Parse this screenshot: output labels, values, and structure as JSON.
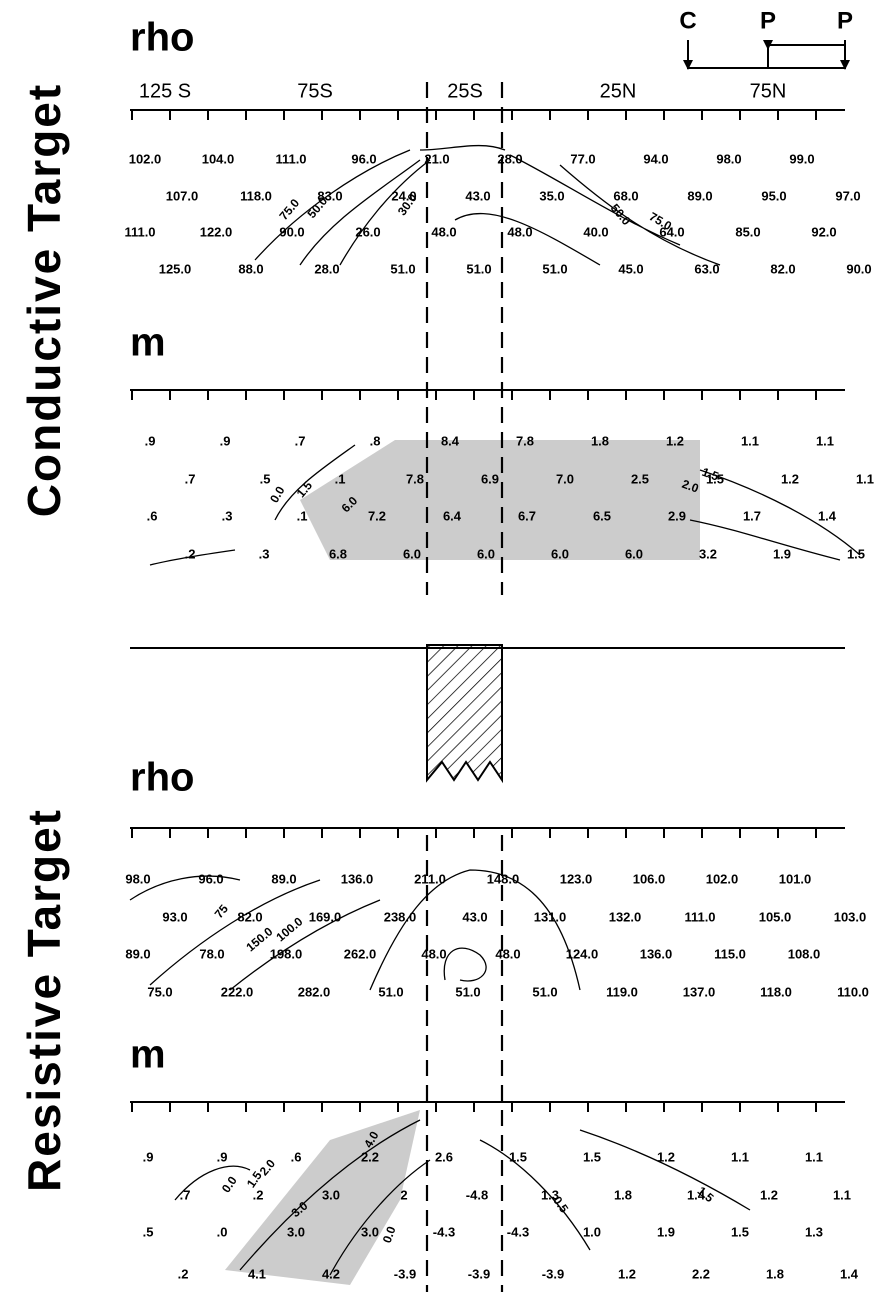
{
  "side_labels": [
    "Conductive Target",
    "Resistive Target"
  ],
  "array": [
    "C",
    "P",
    "P"
  ],
  "axis_labels": [
    "125 S",
    "75S",
    "25S",
    "25N",
    "75N"
  ],
  "panels": [
    {
      "title": "rho",
      "rows": [
        [
          "102.0",
          "104.0",
          "111.0",
          "96.0",
          "21.0",
          "28.0",
          "77.0",
          "94.0",
          "98.0",
          "99.0"
        ],
        [
          "107.0",
          "118.0",
          "83.0",
          "24.0",
          "43.0",
          "35.0",
          "68.0",
          "89.0",
          "95.0",
          "97.0"
        ],
        [
          "111.0",
          "122.0",
          "90.0",
          "26.0",
          "48.0",
          "48.0",
          "40.0",
          "64.0",
          "85.0",
          "92.0"
        ],
        [
          "125.0",
          "88.0",
          "28.0",
          "51.0",
          "51.0",
          "51.0",
          "45.0",
          "63.0",
          "82.0",
          "90.0"
        ]
      ],
      "contour_labels": [
        "75.0",
        "50.0",
        "30.0",
        "50.0",
        "75.0"
      ]
    },
    {
      "title": "m",
      "rows": [
        [
          ".9",
          ".9",
          ".7",
          ".8",
          "8.4",
          "7.8",
          "1.8",
          "1.2",
          "1.1",
          "1.1"
        ],
        [
          ".7",
          ".5",
          ".1",
          "7.8",
          "6.9",
          "7.0",
          "2.5",
          "1.5",
          "1.2",
          "1.1"
        ],
        [
          ".6",
          ".3",
          ".1",
          "7.2",
          "6.4",
          "6.7",
          "6.5",
          "2.9",
          "1.7",
          "1.4"
        ],
        [
          ".2",
          ".3",
          "6.8",
          "6.0",
          "6.0",
          "6.0",
          "6.0",
          "3.2",
          "1.9",
          "1.5"
        ]
      ],
      "contour_labels": [
        "0.0",
        "1.5",
        "6.0",
        "2.0",
        "1.5"
      ]
    },
    {
      "title": "rho",
      "rows": [
        [
          "98.0",
          "96.0",
          "89.0",
          "136.0",
          "211.0",
          "148.0",
          "123.0",
          "106.0",
          "102.0",
          "101.0"
        ],
        [
          "93.0",
          "82.0",
          "169.0",
          "238.0",
          "43.0",
          "131.0",
          "132.0",
          "111.0",
          "105.0",
          "103.0"
        ],
        [
          "89.0",
          "78.0",
          "198.0",
          "262.0",
          "48.0",
          "48.0",
          "124.0",
          "136.0",
          "115.0",
          "108.0"
        ],
        [
          "75.0",
          "222.0",
          "282.0",
          "51.0",
          "51.0",
          "51.0",
          "119.0",
          "137.0",
          "118.0",
          "110.0"
        ]
      ],
      "contour_labels": [
        "75",
        "150.0",
        "100.0"
      ]
    },
    {
      "title": "m",
      "rows": [
        [
          ".9",
          ".9",
          ".6",
          "2.2",
          "2.6",
          "1.5",
          "1.5",
          "1.2",
          "1.1",
          "1.1"
        ],
        [
          ".7",
          ".2",
          "3.0",
          "2",
          "-4.8",
          "1.3",
          "1.8",
          "1.4",
          "1.2",
          "1.1"
        ],
        [
          ".5",
          ".0",
          "3.0",
          "3.0",
          "-4.3",
          "-4.3",
          "1.0",
          "1.9",
          "1.5",
          "1.3"
        ],
        [
          ".2",
          "4.1",
          "4.2",
          "-3.9",
          "-3.9",
          "-3.9",
          "1.2",
          "2.2",
          "1.8",
          "1.4"
        ]
      ],
      "contour_labels": [
        "0.0",
        "1.5",
        "2.0",
        "3.0",
        "4.0",
        "0.0",
        "0.5",
        "1.5"
      ]
    }
  ]
}
